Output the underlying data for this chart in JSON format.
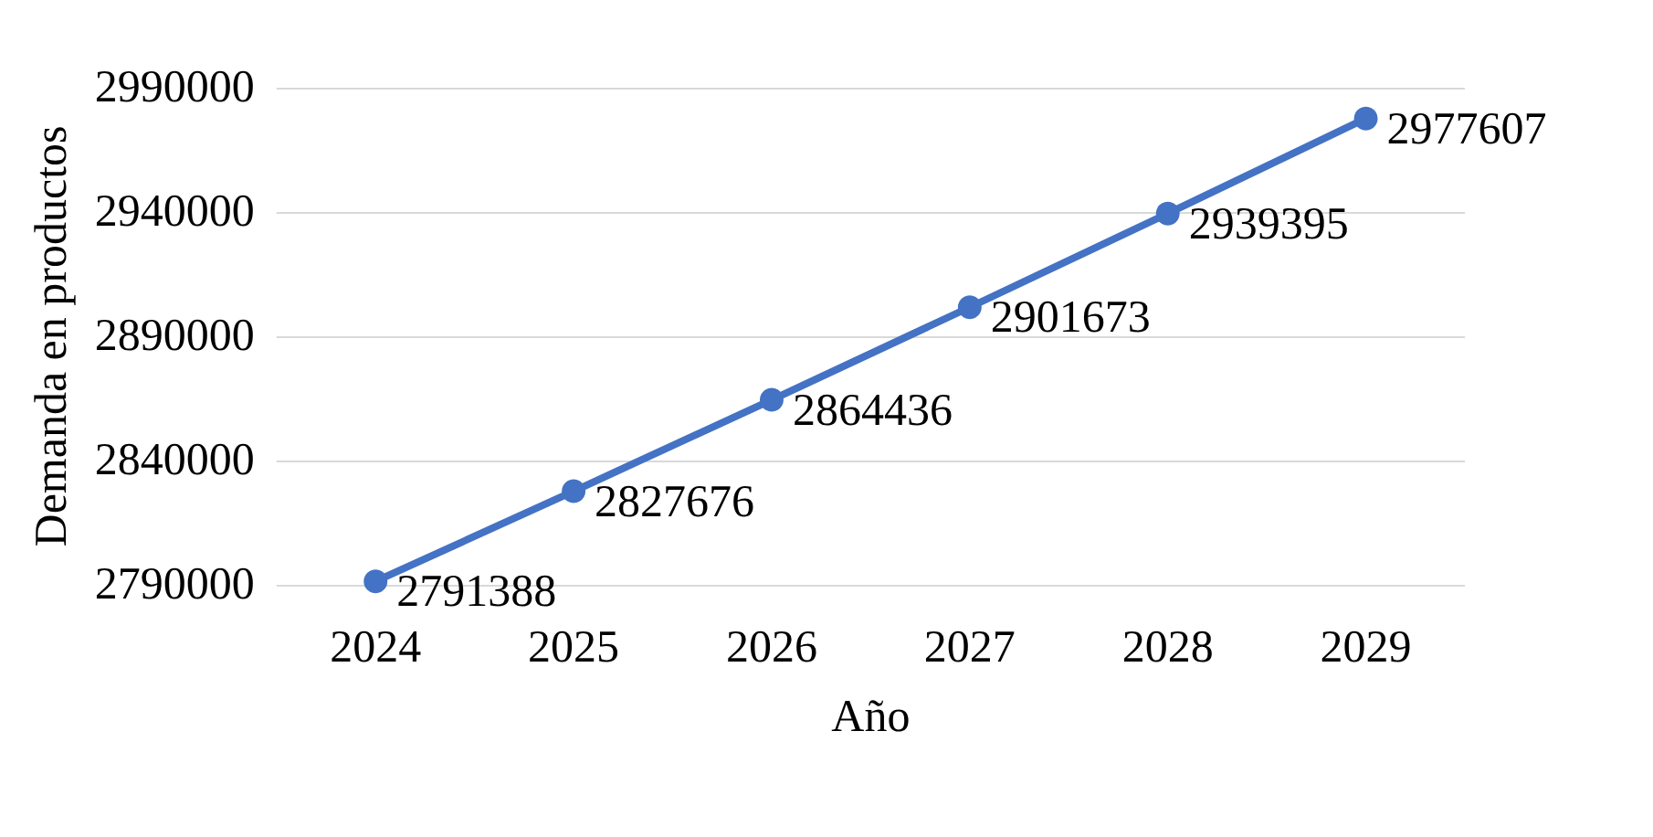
{
  "chart_data": {
    "type": "line",
    "xlabel": "Año",
    "ylabel": "Demanda en productos",
    "categories": [
      "2024",
      "2025",
      "2026",
      "2027",
      "2028",
      "2029"
    ],
    "values": [
      2791388,
      2827676,
      2864436,
      2901673,
      2939395,
      2977607
    ],
    "color": "#4472c4",
    "ylim": [
      2790000,
      2990000
    ],
    "yticks": [
      2790000,
      2840000,
      2890000,
      2940000,
      2990000
    ],
    "grid": "y",
    "marker": "circle",
    "line_style": "solid",
    "data_labels": true
  }
}
